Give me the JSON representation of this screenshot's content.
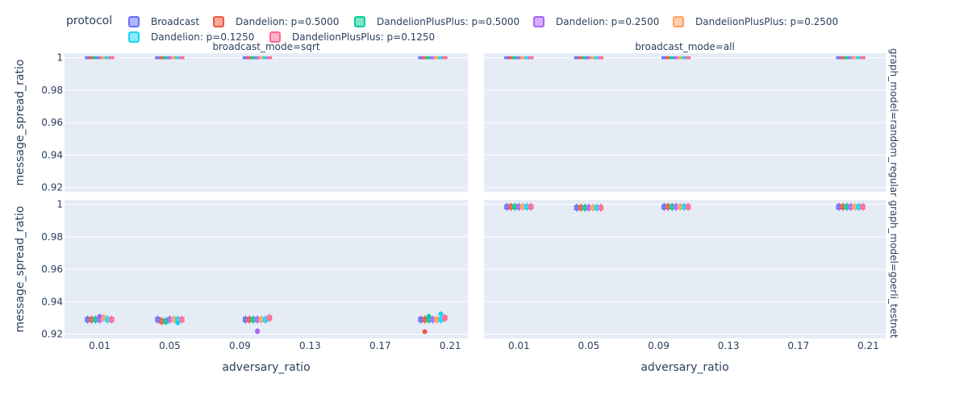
{
  "chart_data": {
    "type": "box",
    "legend": {
      "title": "protocol",
      "placement": "top",
      "items": [
        {
          "name": "Broadcast",
          "color": "#636efa"
        },
        {
          "name": "Dandelion: p=0.5000",
          "color": "#ef553b"
        },
        {
          "name": "DandelionPlusPlus: p=0.5000",
          "color": "#00cc96"
        },
        {
          "name": "Dandelion: p=0.2500",
          "color": "#ab63fa"
        },
        {
          "name": "DandelionPlusPlus: p=0.2500",
          "color": "#ffa15a"
        },
        {
          "name": "Dandelion: p=0.1250",
          "color": "#19d3f3"
        },
        {
          "name": "DandelionPlusPlus: p=0.1250",
          "color": "#ff6692"
        }
      ]
    },
    "columns": [
      "broadcast_mode=sqrt",
      "broadcast_mode=all"
    ],
    "rows": [
      "graph_model=random_regular",
      "graph_model=goerli_testnet"
    ],
    "xlabel": "adversary_ratio",
    "ylabel": "message_spread_ratio",
    "xticks": [
      "0.01",
      "0.05",
      "0.09",
      "0.13",
      "0.17",
      "0.21"
    ],
    "yticks": [
      "1",
      "0.98",
      "0.96",
      "0.94",
      "0.92"
    ],
    "xlim": [
      -0.01,
      0.22
    ],
    "ylim": [
      0.918,
      1.004
    ],
    "grid": true,
    "x_groups": [
      0.01,
      0.05,
      0.1,
      0.2
    ],
    "medians": {
      "sqrt|random_regular": [
        [
          1,
          1,
          1,
          1,
          1,
          1,
          1
        ],
        [
          1,
          1,
          1,
          1,
          1,
          1,
          1
        ],
        [
          1,
          1,
          1,
          1,
          1,
          1,
          1
        ],
        [
          1,
          1,
          1,
          1,
          1,
          1,
          1
        ]
      ],
      "all|random_regular": [
        [
          1,
          1,
          1,
          1,
          1,
          1,
          1
        ],
        [
          1,
          1,
          1,
          1,
          1,
          1,
          1
        ],
        [
          1,
          1,
          1,
          1,
          1,
          1,
          1
        ],
        [
          1,
          1,
          1,
          1,
          1,
          1,
          1
        ]
      ],
      "sqrt|goerli_testnet": [
        [
          0.929,
          0.929,
          0.929,
          0.929,
          0.93,
          0.929,
          0.929
        ],
        [
          0.929,
          0.928,
          0.928,
          0.929,
          0.929,
          0.929,
          0.929
        ],
        [
          0.929,
          0.929,
          0.929,
          0.929,
          0.929,
          0.929,
          0.93
        ],
        [
          0.929,
          0.929,
          0.929,
          0.929,
          0.929,
          0.929,
          0.93
        ]
      ],
      "all|goerli_testnet": [
        [
          0.9985,
          0.9985,
          0.9985,
          0.9985,
          0.9985,
          0.9985,
          0.9985
        ],
        [
          0.998,
          0.998,
          0.998,
          0.998,
          0.998,
          0.998,
          0.998
        ],
        [
          0.9985,
          0.9985,
          0.9985,
          0.9985,
          0.9985,
          0.9985,
          0.9985
        ],
        [
          0.9985,
          0.9985,
          0.9985,
          0.9985,
          0.9985,
          0.9985,
          0.9985
        ]
      ]
    },
    "outliers": {
      "sqrt|goerli_testnet": [
        {
          "group": 0,
          "series": 3,
          "y": 0.931
        },
        {
          "group": 1,
          "series": 5,
          "y": 0.927
        },
        {
          "group": 2,
          "series": 3,
          "y": 0.922
        },
        {
          "group": 2,
          "series": 3,
          "y": 0.9215
        },
        {
          "group": 3,
          "series": 1,
          "y": 0.9215
        },
        {
          "group": 3,
          "series": 5,
          "y": 0.9325
        },
        {
          "group": 3,
          "series": 2,
          "y": 0.931
        }
      ]
    }
  }
}
